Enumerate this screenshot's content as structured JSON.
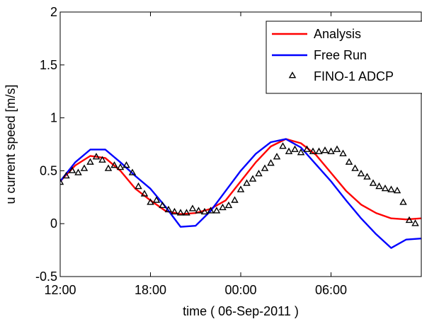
{
  "chart_data": {
    "type": "line",
    "xlabel": "time ( 06-Sep-2011 )",
    "ylabel": "u current speed [m/s]",
    "x_unit": "hours since 06-Sep-2011 12:00",
    "xlim": [
      0,
      24
    ],
    "ylim": [
      -0.5,
      2
    ],
    "x_ticks": [
      {
        "x": 0,
        "label": "12:00"
      },
      {
        "x": 6,
        "label": "18:00"
      },
      {
        "x": 12,
        "label": "00:00"
      },
      {
        "x": 18,
        "label": "06:00"
      }
    ],
    "y_ticks": [
      {
        "y": -0.5,
        "label": "-0.5"
      },
      {
        "y": 0,
        "label": "0"
      },
      {
        "y": 0.5,
        "label": "0.5"
      },
      {
        "y": 1,
        "label": "1"
      },
      {
        "y": 1.5,
        "label": "1.5"
      },
      {
        "y": 2,
        "label": "2"
      }
    ],
    "legend_position": "top-right",
    "series": [
      {
        "name": "Analysis",
        "style": "line",
        "color": "#ff0000",
        "x": [
          0,
          1,
          2,
          3,
          4,
          5,
          6,
          7,
          8,
          9,
          10,
          11,
          12,
          13,
          14,
          15,
          16,
          17,
          18,
          19,
          20,
          21,
          22,
          23,
          24
        ],
        "y": [
          0.4,
          0.55,
          0.64,
          0.62,
          0.5,
          0.33,
          0.22,
          0.12,
          0.09,
          0.1,
          0.14,
          0.22,
          0.4,
          0.58,
          0.73,
          0.8,
          0.76,
          0.65,
          0.48,
          0.31,
          0.18,
          0.1,
          0.05,
          0.04,
          0.05
        ]
      },
      {
        "name": "Free Run",
        "style": "line",
        "color": "#0000ff",
        "x": [
          0,
          1,
          2,
          3,
          4,
          5,
          6,
          7,
          8,
          9,
          10,
          11,
          12,
          13,
          14,
          15,
          16,
          17,
          18,
          19,
          20,
          21,
          22,
          23,
          24
        ],
        "y": [
          0.4,
          0.58,
          0.7,
          0.7,
          0.58,
          0.45,
          0.33,
          0.16,
          -0.03,
          -0.02,
          0.12,
          0.31,
          0.5,
          0.66,
          0.77,
          0.8,
          0.72,
          0.56,
          0.4,
          0.22,
          0.05,
          -0.1,
          -0.23,
          -0.15,
          -0.14
        ]
      },
      {
        "name": "FINO-1 ADCP",
        "style": "marker",
        "marker": "triangle",
        "color": "#000000",
        "x": [
          0.0,
          0.4,
          0.8,
          1.2,
          1.6,
          2.0,
          2.4,
          2.8,
          3.2,
          3.6,
          4.0,
          4.4,
          4.8,
          5.2,
          5.6,
          6.0,
          6.4,
          6.8,
          7.2,
          7.6,
          8.0,
          8.4,
          8.8,
          9.2,
          9.6,
          10.0,
          10.4,
          10.8,
          11.2,
          11.6,
          12.0,
          12.4,
          12.8,
          13.2,
          13.6,
          14.0,
          14.4,
          14.8,
          15.2,
          15.6,
          16.0,
          16.4,
          16.8,
          17.2,
          17.6,
          18.0,
          18.4,
          18.8,
          19.2,
          19.6,
          20.0,
          20.4,
          20.8,
          21.2,
          21.6,
          22.0,
          22.4,
          22.8,
          23.2,
          23.6
        ],
        "y": [
          0.39,
          0.45,
          0.5,
          0.48,
          0.52,
          0.58,
          0.63,
          0.6,
          0.52,
          0.55,
          0.53,
          0.55,
          0.48,
          0.35,
          0.28,
          0.2,
          0.22,
          0.17,
          0.13,
          0.11,
          0.1,
          0.1,
          0.14,
          0.12,
          0.11,
          0.12,
          0.12,
          0.15,
          0.17,
          0.22,
          0.32,
          0.38,
          0.42,
          0.47,
          0.52,
          0.57,
          0.63,
          0.73,
          0.68,
          0.7,
          0.67,
          0.7,
          0.68,
          0.68,
          0.69,
          0.68,
          0.7,
          0.66,
          0.58,
          0.52,
          0.47,
          0.44,
          0.38,
          0.35,
          0.33,
          0.32,
          0.31,
          0.2,
          0.03,
          0.0
        ]
      }
    ]
  }
}
